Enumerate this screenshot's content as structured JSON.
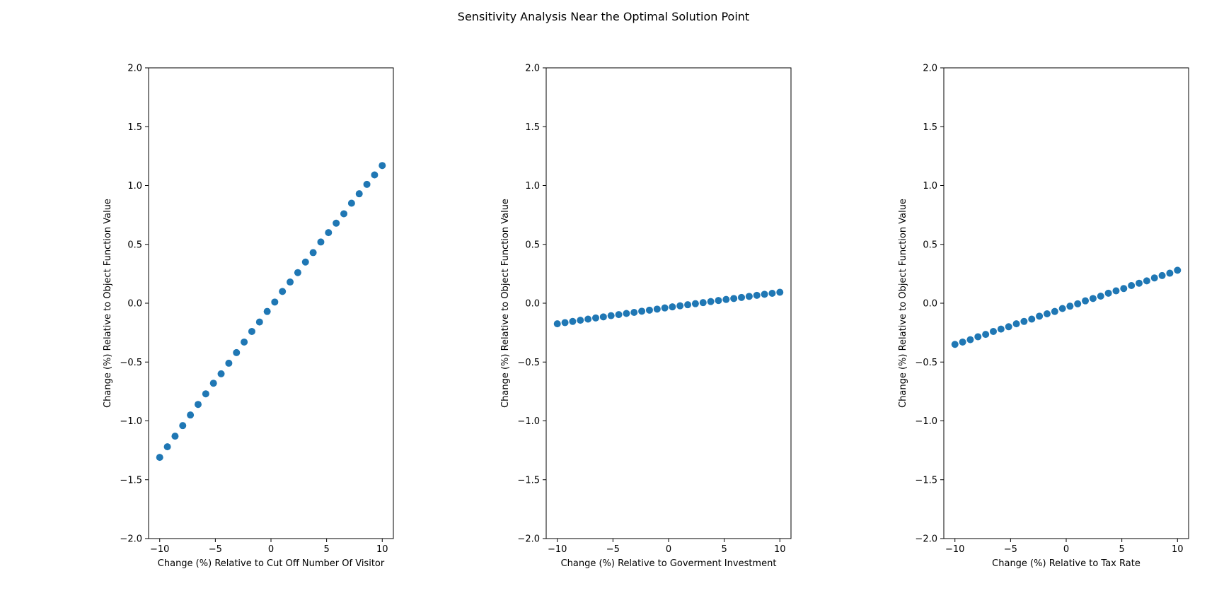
{
  "figure": {
    "suptitle": "Sensitivity Analysis Near the Optimal Solution Point"
  },
  "colors": {
    "marker": "#1f77b4",
    "axes": "#000000"
  },
  "chart_data": [
    {
      "type": "scatter",
      "xlabel": "Change (%) Relative to Cut Off Number Of Visitor",
      "ylabel": "Change (%) Relative to Object Function Value",
      "xlim": [
        -11,
        11
      ],
      "ylim": [
        -2.0,
        2.0
      ],
      "xticks": [
        -10,
        -5,
        0,
        5,
        10
      ],
      "xtick_labels": [
        "−10",
        "−5",
        "0",
        "5",
        "10"
      ],
      "yticks": [
        -2.0,
        -1.5,
        -1.0,
        -0.5,
        0.0,
        0.5,
        1.0,
        1.5,
        2.0
      ],
      "ytick_labels": [
        "−2.0",
        "−1.5",
        "−1.0",
        "−0.5",
        "0.0",
        "0.5",
        "1.0",
        "1.5",
        "2.0"
      ],
      "grid": false,
      "x": [
        -10.0,
        -9.31,
        -8.62,
        -7.93,
        -7.24,
        -6.55,
        -5.86,
        -5.17,
        -4.48,
        -3.79,
        -3.1,
        -2.41,
        -1.72,
        -1.03,
        -0.34,
        0.34,
        1.03,
        1.72,
        2.41,
        3.1,
        3.79,
        4.48,
        5.17,
        5.86,
        6.55,
        7.24,
        7.93,
        8.62,
        9.31,
        10.0
      ],
      "y": [
        -1.31,
        -1.22,
        -1.13,
        -1.04,
        -0.95,
        -0.86,
        -0.77,
        -0.68,
        -0.6,
        -0.51,
        -0.42,
        -0.33,
        -0.24,
        -0.16,
        -0.07,
        0.01,
        0.1,
        0.18,
        0.26,
        0.35,
        0.43,
        0.52,
        0.6,
        0.68,
        0.76,
        0.85,
        0.93,
        1.01,
        1.09,
        1.17
      ]
    },
    {
      "type": "scatter",
      "xlabel": "Change (%) Relative to Goverment Investment",
      "ylabel": "Change (%) Relative to Object Function Value",
      "xlim": [
        -11,
        11
      ],
      "ylim": [
        -2.0,
        2.0
      ],
      "xticks": [
        -10,
        -5,
        0,
        5,
        10
      ],
      "xtick_labels": [
        "−10",
        "−5",
        "0",
        "5",
        "10"
      ],
      "yticks": [
        -2.0,
        -1.5,
        -1.0,
        -0.5,
        0.0,
        0.5,
        1.0,
        1.5,
        2.0
      ],
      "ytick_labels": [
        "−2.0",
        "−1.5",
        "−1.0",
        "−0.5",
        "0.0",
        "0.5",
        "1.0",
        "1.5",
        "2.0"
      ],
      "grid": false,
      "x": [
        -10.0,
        -9.31,
        -8.62,
        -7.93,
        -7.24,
        -6.55,
        -5.86,
        -5.17,
        -4.48,
        -3.79,
        -3.1,
        -2.41,
        -1.72,
        -1.03,
        -0.34,
        0.34,
        1.03,
        1.72,
        2.41,
        3.1,
        3.79,
        4.48,
        5.17,
        5.86,
        6.55,
        7.24,
        7.93,
        8.62,
        9.31,
        10.0
      ],
      "y": [
        -0.175,
        -0.165,
        -0.155,
        -0.145,
        -0.135,
        -0.125,
        -0.116,
        -0.106,
        -0.097,
        -0.087,
        -0.078,
        -0.068,
        -0.059,
        -0.05,
        -0.04,
        -0.031,
        -0.022,
        -0.013,
        -0.004,
        0.005,
        0.014,
        0.023,
        0.032,
        0.04,
        0.049,
        0.058,
        0.067,
        0.076,
        0.084,
        0.093
      ]
    },
    {
      "type": "scatter",
      "xlabel": "Change (%) Relative to Tax Rate",
      "ylabel": "Change (%) Relative to Object Function Value",
      "xlim": [
        -11,
        11
      ],
      "ylim": [
        -2.0,
        2.0
      ],
      "xticks": [
        -10,
        -5,
        0,
        5,
        10
      ],
      "xtick_labels": [
        "−10",
        "−5",
        "0",
        "5",
        "10"
      ],
      "yticks": [
        -2.0,
        -1.5,
        -1.0,
        -0.5,
        0.0,
        0.5,
        1.0,
        1.5,
        2.0
      ],
      "ytick_labels": [
        "−2.0",
        "−1.5",
        "−1.0",
        "−0.5",
        "0.0",
        "0.5",
        "1.0",
        "1.5",
        "2.0"
      ],
      "grid": false,
      "x": [
        -10.0,
        -9.31,
        -8.62,
        -7.93,
        -7.24,
        -6.55,
        -5.86,
        -5.17,
        -4.48,
        -3.79,
        -3.1,
        -2.41,
        -1.72,
        -1.03,
        -0.34,
        0.34,
        1.03,
        1.72,
        2.41,
        3.1,
        3.79,
        4.48,
        5.17,
        5.86,
        6.55,
        7.24,
        7.93,
        8.62,
        9.31,
        10.0
      ],
      "y": [
        -0.35,
        -0.33,
        -0.31,
        -0.285,
        -0.265,
        -0.24,
        -0.22,
        -0.2,
        -0.175,
        -0.155,
        -0.135,
        -0.11,
        -0.09,
        -0.07,
        -0.045,
        -0.025,
        -0.005,
        0.02,
        0.04,
        0.06,
        0.085,
        0.105,
        0.125,
        0.15,
        0.17,
        0.19,
        0.215,
        0.235,
        0.255,
        0.28
      ]
    }
  ]
}
